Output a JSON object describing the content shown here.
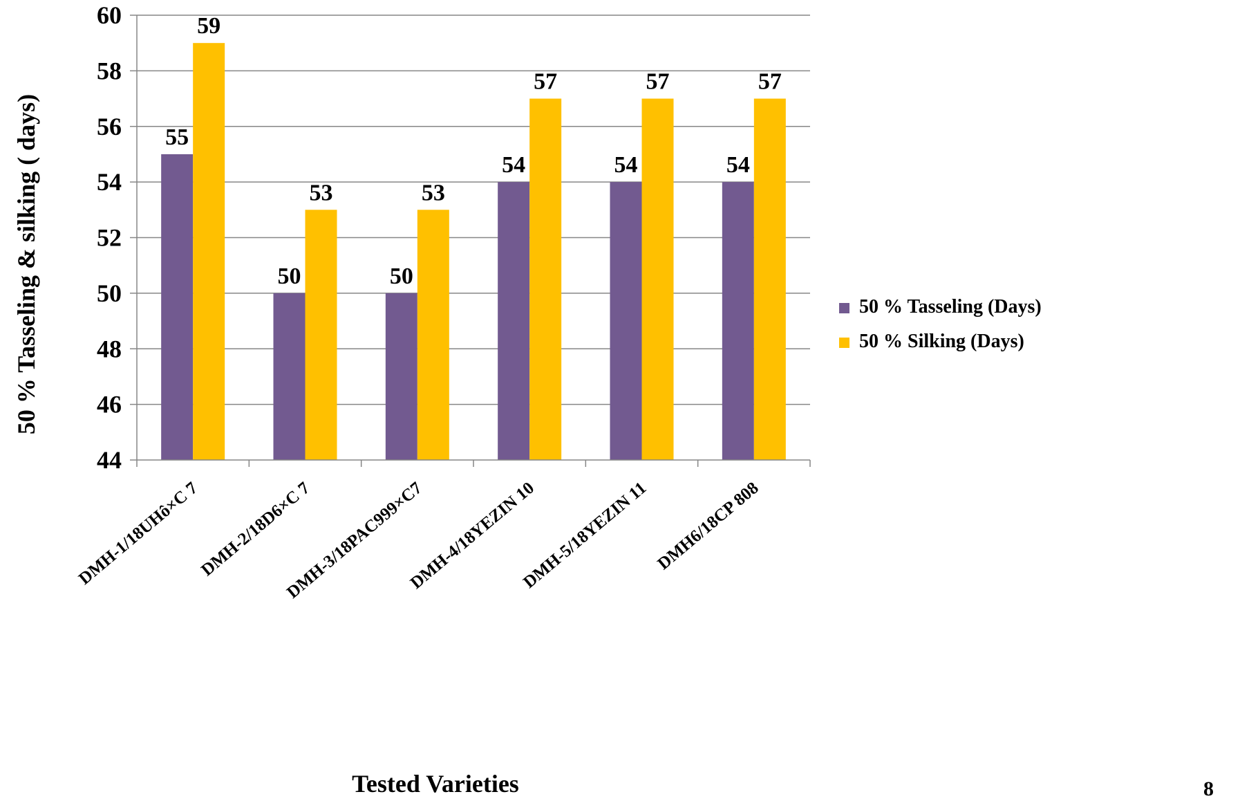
{
  "chart_data": {
    "type": "bar",
    "categories": [
      "DMH-1/18UHô×C 7",
      "DMH-2/18D6×C 7",
      "DMH-3/18PAC999×C7",
      "DMH-4/18YEZIN 10",
      "DMH-5/18YEZIN 11",
      "DMH6/18CP 808"
    ],
    "series": [
      {
        "name": "50 % Tasseling (Days)",
        "values": [
          55,
          50,
          50,
          54,
          54,
          54
        ],
        "color": "#725A90"
      },
      {
        "name": "50 % Silking (Days)",
        "values": [
          59,
          53,
          53,
          57,
          57,
          57
        ],
        "color": "#FFC000"
      }
    ],
    "xlabel": "Tested Varieties",
    "ylabel": "50 % Tasseling & silking ( days)",
    "ylim": [
      44,
      60
    ],
    "yticks": [
      44,
      46,
      48,
      50,
      52,
      54,
      56,
      58,
      60
    ],
    "grid": true,
    "legend_position": "right",
    "data_labels": true
  },
  "page_number": "8"
}
